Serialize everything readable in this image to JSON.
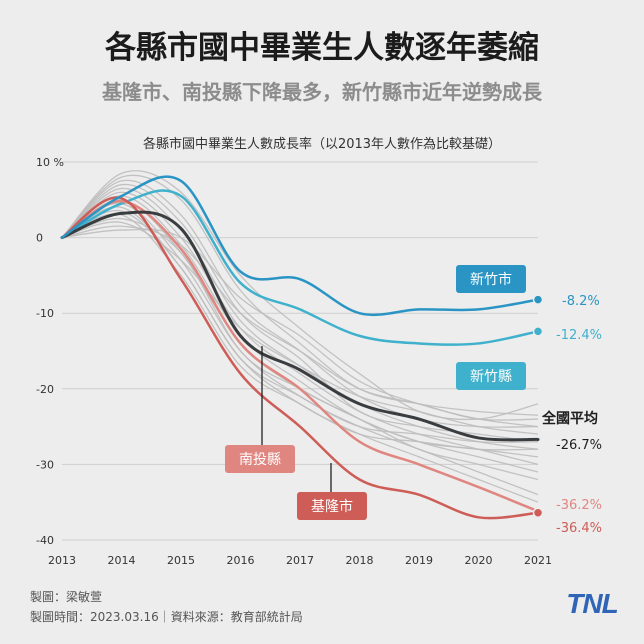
{
  "header": {
    "title": "各縣市國中畢業生人數逐年萎縮",
    "subtitle": "基隆市、南投縣下降最多，新竹縣市近年逆勢成長"
  },
  "chart_data": {
    "type": "line",
    "title": "各縣市國中畢業生人數成長率（以2013年人數作為比較基礎）",
    "x": [
      2013,
      2014,
      2015,
      2016,
      2017,
      2018,
      2019,
      2020,
      2021
    ],
    "x_tick_labels": [
      "2013",
      "2014",
      "2015",
      "2016",
      "2017",
      "2018",
      "2019",
      "2020",
      "2021"
    ],
    "ylim": [
      -40,
      10
    ],
    "y_ticks": [
      10,
      0,
      -10,
      -20,
      -30,
      -40
    ],
    "y_tick_labels": [
      "10 %",
      "0",
      "-10",
      "-20",
      "-30",
      "-40"
    ],
    "grid": "horizontal",
    "series": [
      {
        "name": "新竹市",
        "color": "#2a95c4",
        "width": 2.5,
        "values": [
          0,
          5.5,
          7.5,
          -4.5,
          -5.5,
          -10,
          -9.5,
          -9.5,
          -8.2
        ],
        "end_label": "-8.2%"
      },
      {
        "name": "新竹縣",
        "color": "#3fb1cc",
        "width": 2.5,
        "values": [
          0,
          4.5,
          5.5,
          -6,
          -9.5,
          -13,
          -14,
          -14,
          -12.4
        ],
        "end_label": "-12.4%"
      },
      {
        "name": "全國平均",
        "color": "#3a3d40",
        "width": 3,
        "values": [
          0,
          3.2,
          1.2,
          -13,
          -17.5,
          -22,
          -24,
          -26.5,
          -26.7
        ],
        "end_label": "-26.7%"
      },
      {
        "name": "南投縣",
        "color": "#e08680",
        "width": 2.5,
        "values": [
          0,
          4.8,
          -1.5,
          -14,
          -20,
          -27,
          -30,
          -33,
          -36.2
        ],
        "end_label": "-36.2%"
      },
      {
        "name": "基隆市",
        "color": "#cd5d56",
        "width": 2.5,
        "values": [
          0,
          5.2,
          -5.5,
          -18,
          -25,
          -32,
          -34,
          -37,
          -36.4
        ],
        "end_label": "-36.4%"
      }
    ],
    "other_counties": [
      [
        0,
        8.5,
        6,
        -5,
        -12,
        -18,
        -23,
        -24,
        -22
      ],
      [
        0,
        8,
        5,
        -7,
        -14,
        -20,
        -22,
        -23,
        -23.5
      ],
      [
        0,
        7.5,
        3,
        -9,
        -15,
        -21,
        -24,
        -25,
        -25
      ],
      [
        0,
        7,
        2,
        -10,
        -16,
        -23,
        -25,
        -26,
        -27
      ],
      [
        0,
        6.5,
        1,
        -11,
        -17,
        -22,
        -25,
        -27,
        -28
      ],
      [
        0,
        6,
        0,
        -12,
        -18,
        -23,
        -26,
        -28,
        -30
      ],
      [
        0,
        5.5,
        -1,
        -13,
        -19,
        -24,
        -27,
        -29,
        -31
      ],
      [
        0,
        5,
        -2,
        -14,
        -20,
        -24,
        -28,
        -30,
        -32
      ],
      [
        0,
        4.5,
        -3,
        -15,
        -21,
        -25,
        -28,
        -31,
        -34
      ],
      [
        0,
        4,
        -4,
        -16,
        -22,
        -26,
        -29,
        -32,
        -35
      ],
      [
        0,
        3,
        -5,
        -17,
        -22,
        -26,
        -27,
        -28,
        -28
      ],
      [
        0,
        2,
        -3,
        -12,
        -17,
        -21,
        -23,
        -25,
        -26
      ],
      [
        0,
        1.5,
        -1,
        -10,
        -15,
        -20,
        -22,
        -24,
        -24
      ],
      [
        0,
        1,
        0,
        -8,
        -13,
        -19,
        -22,
        -24,
        -25
      ],
      [
        0,
        2.5,
        -2,
        -15,
        -20,
        -24,
        -27,
        -28,
        -29
      ],
      [
        0,
        3.5,
        -4,
        -16,
        -21,
        -25,
        -26,
        -27,
        -27
      ]
    ],
    "other_counties_color": "#bdbdbd",
    "annotations": [
      {
        "text": "新竹市",
        "series": "新竹市"
      },
      {
        "text": "新竹縣",
        "series": "新竹縣"
      },
      {
        "text": "全國平均",
        "series": "全國平均"
      },
      {
        "text": "南投縣",
        "series": "南投縣"
      },
      {
        "text": "基隆市",
        "series": "基隆市"
      }
    ]
  },
  "footer": {
    "credit": "製圖：梁敏萱",
    "meta": "製圖時間：2023.03.16｜資料來源：教育部統計局"
  },
  "brand": {
    "logo": "TNL"
  }
}
